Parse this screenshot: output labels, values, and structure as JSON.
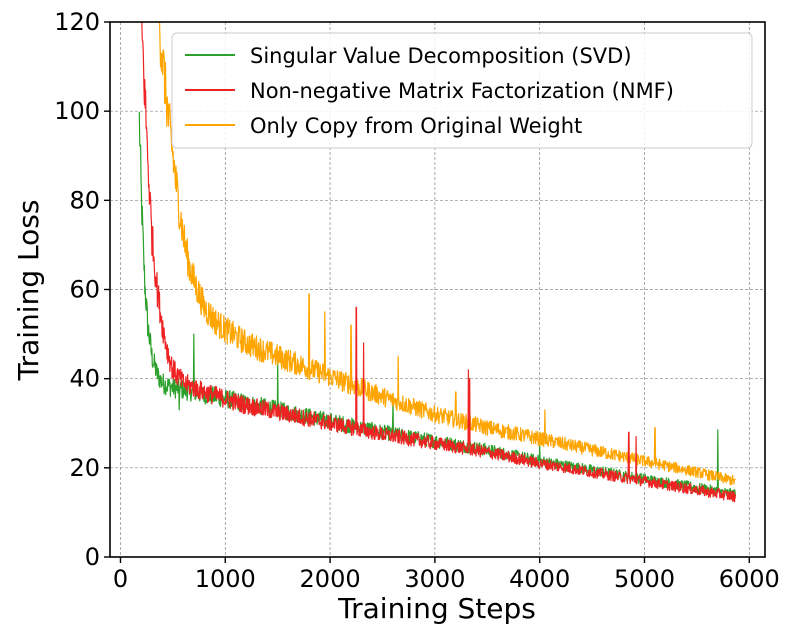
{
  "chart_data": {
    "type": "line",
    "title": "",
    "xlabel": "Training Steps",
    "ylabel": "Training Loss",
    "xlim": [
      -100,
      6150
    ],
    "ylim": [
      0,
      120
    ],
    "xticks": [
      0,
      1000,
      2000,
      3000,
      4000,
      5000,
      6000
    ],
    "yticks": [
      0,
      20,
      40,
      60,
      80,
      100,
      120
    ],
    "xtick_labels": [
      "0",
      "1000",
      "2000",
      "3000",
      "4000",
      "5000",
      "6000"
    ],
    "ytick_labels": [
      "0",
      "20",
      "40",
      "60",
      "80",
      "100",
      "120"
    ],
    "grid": true,
    "legend_position": "top-right",
    "series": [
      {
        "name": "Singular Value Decomposition (SVD)",
        "color": "#2ca02c",
        "x": [
          180,
          200,
          230,
          260,
          300,
          350,
          400,
          450,
          500,
          600,
          700,
          800,
          1000,
          1200,
          1500,
          2000,
          2500,
          3000,
          3500,
          4000,
          4500,
          5000,
          5500,
          5870
        ],
        "y": [
          98,
          80,
          62,
          52,
          45,
          41,
          39,
          38.5,
          38,
          37.5,
          37,
          36.5,
          35.5,
          34.5,
          33,
          30.5,
          28,
          26,
          24,
          21.5,
          19.5,
          17.5,
          15.5,
          14
        ],
        "spikes": [
          [
            560,
            33
          ],
          [
            700,
            50
          ],
          [
            1500,
            44
          ],
          [
            2600,
            35
          ],
          [
            4000,
            25
          ],
          [
            5700,
            28.5
          ]
        ]
      },
      {
        "name": "Non-negative Matrix Factorization (NMF)",
        "color": "#ee2222",
        "x": [
          200,
          230,
          270,
          300,
          350,
          400,
          450,
          500,
          600,
          700,
          800,
          1000,
          1200,
          1500,
          2000,
          2500,
          3000,
          3500,
          4000,
          4500,
          5000,
          5500,
          5870
        ],
        "y": [
          120,
          105,
          85,
          72,
          60,
          52,
          46,
          42,
          39,
          38,
          37,
          35.5,
          34,
          32.5,
          30,
          27.5,
          25.5,
          23.5,
          21,
          19,
          17,
          15,
          13.5
        ],
        "spikes": [
          [
            2250,
            56
          ],
          [
            2320,
            48
          ],
          [
            3320,
            42
          ],
          [
            3330,
            40
          ],
          [
            4850,
            28
          ],
          [
            4920,
            27
          ]
        ]
      },
      {
        "name": "Only Copy from Original Weight",
        "color": "#ffa500",
        "x": [
          370,
          400,
          450,
          500,
          550,
          600,
          650,
          700,
          800,
          900,
          1000,
          1200,
          1500,
          2000,
          2500,
          3000,
          3500,
          4000,
          4500,
          5000,
          5500,
          5870
        ],
        "y": [
          120,
          112,
          100,
          90,
          80,
          72,
          66,
          62,
          56,
          53,
          51,
          48,
          45,
          40.5,
          36,
          32,
          29,
          26.5,
          24,
          21.5,
          19,
          17
        ],
        "spikes": [
          [
            1800,
            59
          ],
          [
            1950,
            55
          ],
          [
            2200,
            52
          ],
          [
            2650,
            45
          ],
          [
            3200,
            37
          ],
          [
            4050,
            33
          ],
          [
            5100,
            29
          ]
        ]
      }
    ]
  }
}
